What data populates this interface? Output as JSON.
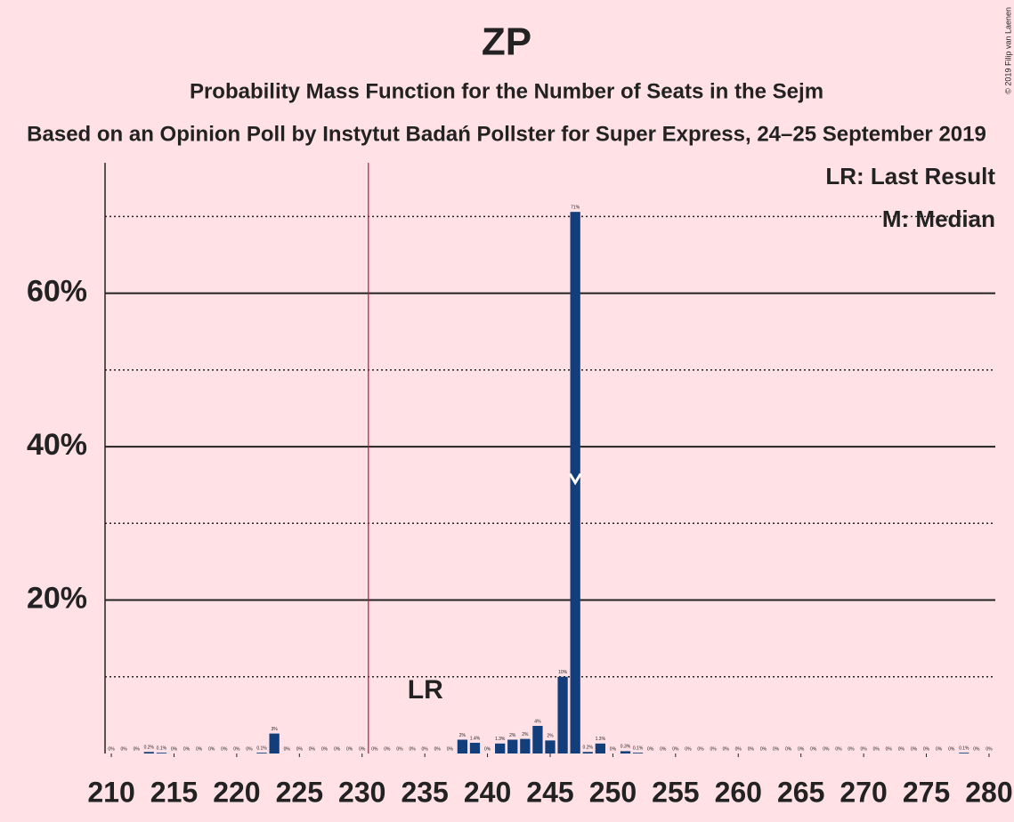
{
  "chart_data": {
    "type": "bar",
    "title": "ZP",
    "subtitle": "Probability Mass Function for the Number of Seats in the Sejm",
    "subtitle2": "Based on an Opinion Poll by Instytut Badań Pollster for Super Express, 24–25 September 2019",
    "copyright": "© 2019 Filip van Laenen",
    "legend": [
      "LR: Last Result",
      "M: Median"
    ],
    "annotation_lr": "LR",
    "last_result_line": 230.5,
    "median": 247,
    "color": "#123e7b",
    "lr_color": "#c0143c",
    "x": [
      210,
      211,
      212,
      213,
      214,
      215,
      216,
      217,
      218,
      219,
      220,
      221,
      222,
      223,
      224,
      225,
      226,
      227,
      228,
      229,
      230,
      231,
      232,
      233,
      234,
      235,
      236,
      237,
      238,
      239,
      240,
      241,
      242,
      243,
      244,
      245,
      246,
      247,
      248,
      249,
      250,
      251,
      252,
      253,
      254,
      255,
      256,
      257,
      258,
      259,
      260,
      261,
      262,
      263,
      264,
      265,
      266,
      267,
      268,
      269,
      270,
      271,
      272,
      273,
      274,
      275,
      276,
      277,
      278,
      279,
      280
    ],
    "values": [
      0,
      0,
      0,
      0.2,
      0.1,
      0,
      0,
      0,
      0,
      0,
      0,
      0,
      0.1,
      2.6,
      0,
      0,
      0,
      0,
      0,
      0,
      0,
      0,
      0,
      0,
      0,
      0,
      0,
      0,
      1.8,
      1.4,
      0,
      1.3,
      1.8,
      1.9,
      3.6,
      1.7,
      10.0,
      70.6,
      0.2,
      1.3,
      0,
      0.3,
      0.1,
      0,
      0,
      0,
      0,
      0,
      0,
      0,
      0,
      0,
      0,
      0,
      0,
      0,
      0,
      0,
      0,
      0,
      0,
      0,
      0,
      0,
      0,
      0,
      0,
      0,
      0.1,
      0,
      0
    ],
    "value_labels": [
      "0%",
      "0%",
      "0%",
      "0.2%",
      "0.1%",
      "0%",
      "0%",
      "0%",
      "0%",
      "0%",
      "0%",
      "0%",
      "0.1%",
      "3%",
      "0%",
      "0%",
      "0%",
      "0%",
      "0%",
      "0%",
      "0%",
      "0%",
      "0%",
      "0%",
      "0%",
      "0%",
      "0%",
      "0%",
      "2%",
      "1.4%",
      "0%",
      "1.3%",
      "2%",
      "2%",
      "4%",
      "2%",
      "10%",
      "71%",
      "0.2%",
      "1.3%",
      "0%",
      "0.3%",
      "0.1%",
      "0%",
      "0%",
      "0%",
      "0%",
      "0%",
      "0%",
      "0%",
      "0%",
      "0%",
      "0%",
      "0%",
      "0%",
      "0%",
      "0%",
      "0%",
      "0%",
      "0%",
      "0%",
      "0%",
      "0%",
      "0%",
      "0%",
      "0%",
      "0%",
      "0%",
      "0.1%",
      "0%",
      "0%"
    ],
    "xlim": [
      209.5,
      280.5
    ],
    "xticks": [
      210,
      215,
      220,
      225,
      230,
      235,
      240,
      245,
      250,
      255,
      260,
      265,
      270,
      275,
      280
    ],
    "ylim": [
      0,
      77
    ],
    "yticks": [
      {
        "value": 20,
        "label": "20%"
      },
      {
        "value": 40,
        "label": "40%"
      },
      {
        "value": 60,
        "label": "60%"
      }
    ],
    "minor_gridlines": [
      10,
      30,
      50,
      70
    ],
    "grid": true
  }
}
